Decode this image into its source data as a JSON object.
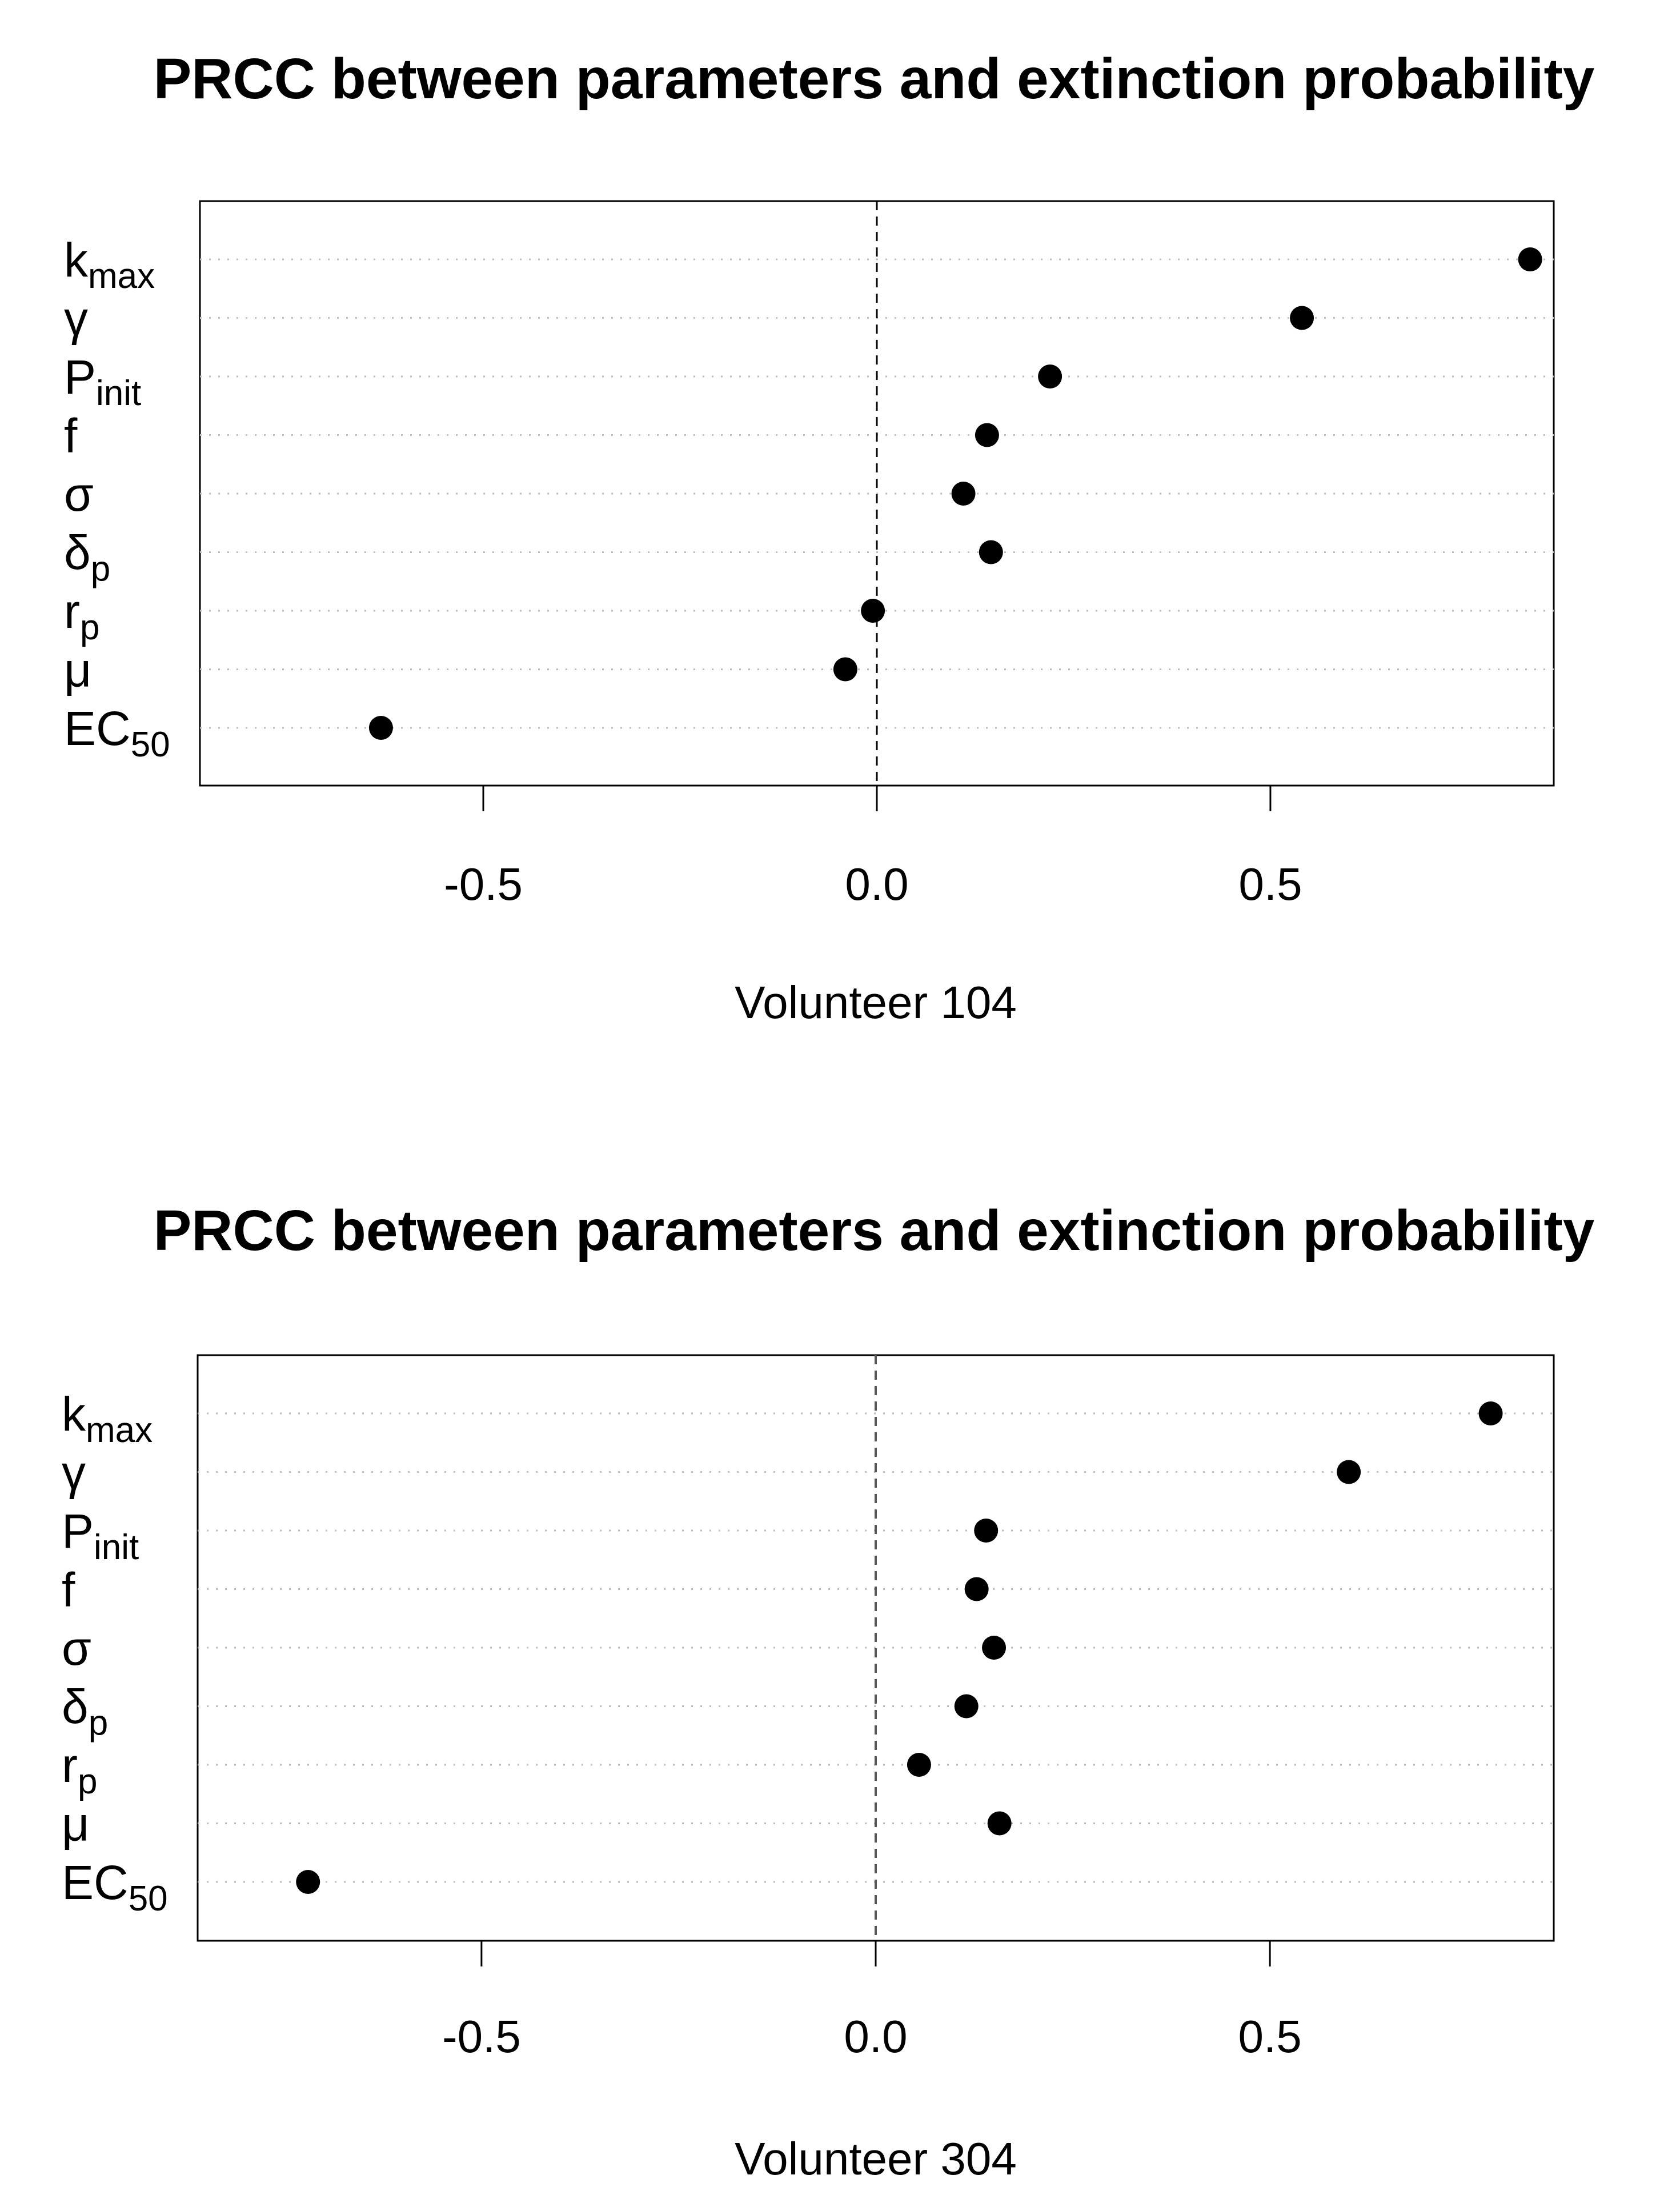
{
  "chart_data": [
    {
      "type": "scatter",
      "subtype": "dot-chart",
      "title": "PRCC between parameters and extinction probability",
      "xlabel": "Volunteer 104",
      "ylabel": "",
      "xlim": [
        -0.86,
        0.86
      ],
      "xticks": [
        -0.5,
        0.0,
        0.5
      ],
      "xtick_labels": [
        "-0.5",
        "0.0",
        "0.5"
      ],
      "reference_line": 0.0,
      "grid": "dotted horizontal",
      "categories": [
        {
          "base": "k",
          "sub": "max"
        },
        {
          "base": "γ",
          "sub": ""
        },
        {
          "base": "P",
          "sub": "init"
        },
        {
          "base": "f",
          "sub": ""
        },
        {
          "base": "σ",
          "sub": ""
        },
        {
          "base": "δ",
          "sub": "p"
        },
        {
          "base": "r",
          "sub": "p"
        },
        {
          "base": "μ",
          "sub": ""
        },
        {
          "base": "EC",
          "sub": "50"
        }
      ],
      "values": [
        0.83,
        0.54,
        0.22,
        0.14,
        0.11,
        0.145,
        -0.005,
        -0.04,
        -0.63
      ]
    },
    {
      "type": "scatter",
      "subtype": "dot-chart",
      "title": "PRCC between parameters and extinction probability",
      "xlabel": "Volunteer 304",
      "ylabel": "",
      "xlim": [
        -0.86,
        0.86
      ],
      "xticks": [
        -0.5,
        0.0,
        0.5
      ],
      "xtick_labels": [
        "-0.5",
        "0.0",
        "0.5"
      ],
      "reference_line": 0.0,
      "grid": "dotted horizontal",
      "categories": [
        {
          "base": "k",
          "sub": "max"
        },
        {
          "base": "γ",
          "sub": ""
        },
        {
          "base": "P",
          "sub": "init"
        },
        {
          "base": "f",
          "sub": ""
        },
        {
          "base": "σ",
          "sub": ""
        },
        {
          "base": "δ",
          "sub": "p"
        },
        {
          "base": "r",
          "sub": "p"
        },
        {
          "base": "μ",
          "sub": ""
        },
        {
          "base": "EC",
          "sub": "50"
        }
      ],
      "values": [
        0.78,
        0.6,
        0.14,
        0.128,
        0.15,
        0.115,
        0.055,
        0.157,
        -0.72
      ]
    }
  ]
}
